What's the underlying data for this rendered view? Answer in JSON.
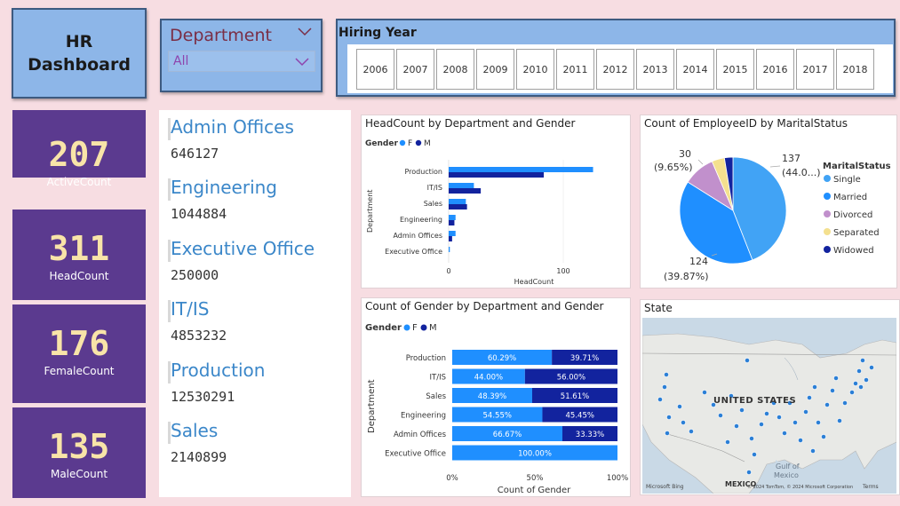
{
  "header": {
    "title_line1": "HR",
    "title_line2": "Dashboard"
  },
  "dept_slicer": {
    "label": "Department",
    "value": "All"
  },
  "year_slicer": {
    "title": "Hiring Year",
    "years": [
      "2006",
      "2007",
      "2008",
      "2009",
      "2010",
      "2011",
      "2012",
      "2013",
      "2014",
      "2015",
      "2016",
      "2017",
      "2018"
    ]
  },
  "kpis": [
    {
      "value": "207",
      "label": "ActiveCount"
    },
    {
      "value": "311",
      "label": "HeadCount"
    },
    {
      "value": "176",
      "label": "FemaleCount"
    },
    {
      "value": "135",
      "label": "MaleCount"
    }
  ],
  "dept_salaries": [
    {
      "name": "Admin Offices",
      "value": "646127"
    },
    {
      "name": "Engineering",
      "value": "1044884"
    },
    {
      "name": "Executive Office",
      "value": "250000"
    },
    {
      "name": "IT/IS",
      "value": "4853232"
    },
    {
      "name": "Production",
      "value": "12530291"
    },
    {
      "name": "Sales",
      "value": "2140899"
    }
  ],
  "colors": {
    "female": "#1f8fff",
    "male": "#12239e",
    "single": "#41a3f5",
    "married": "#1f8fff",
    "divorced": "#c190cc",
    "separated": "#f4e08f",
    "widowed": "#12239e"
  },
  "headcount_chart": {
    "title": "HeadCount by Department and Gender",
    "legend_title": "Gender",
    "legend_f": "F",
    "legend_m": "M",
    "ylabel": "Department",
    "xlabel": "HeadCount",
    "ticks": [
      "0",
      "100"
    ]
  },
  "gender_chart": {
    "title": "Count of Gender by Department and Gender",
    "legend_title": "Gender",
    "legend_f": "F",
    "legend_m": "M",
    "ylabel": "Department",
    "xlabel": "Count of Gender",
    "ticks": [
      "0%",
      "50%",
      "100%"
    ]
  },
  "marital_chart": {
    "title": "Count of EmployeeID by MaritalStatus",
    "legend_title": "MaritalStatus",
    "labels": [
      "Single",
      "Married",
      "Divorced",
      "Separated",
      "Widowed"
    ],
    "label_single_count": "137",
    "label_single_pct": "(44.0...)",
    "label_married_count": "124",
    "label_married_pct": "(39.87%)",
    "label_divorced_count": "30",
    "label_divorced_pct": "(9.65%)"
  },
  "map": {
    "title": "State",
    "country_label": "UNITED STATES",
    "gulf_label": "Gulf of\nMexico",
    "mexico_label": "MEXICO",
    "copyright": "© 2024 TomTom, © 2024 Microsoft Corporation",
    "terms": "Terms",
    "bing": "Microsoft Bing"
  },
  "chart_data": [
    {
      "type": "bar",
      "title": "HeadCount by Department and Gender",
      "xlabel": "HeadCount",
      "ylabel": "Department",
      "categories": [
        "Production",
        "IT/IS",
        "Sales",
        "Engineering",
        "Admin Offices",
        "Executive Office"
      ],
      "series": [
        {
          "name": "F",
          "values": [
            126,
            22,
            15,
            6,
            6,
            1
          ]
        },
        {
          "name": "M",
          "values": [
            83,
            28,
            16,
            5,
            3,
            0
          ]
        }
      ],
      "xlim": [
        0,
        140
      ]
    },
    {
      "type": "bar",
      "title": "Count of Gender by Department and Gender",
      "xlabel": "Count of Gender",
      "ylabel": "Department",
      "categories": [
        "Production",
        "IT/IS",
        "Sales",
        "Engineering",
        "Admin Offices",
        "Executive Office"
      ],
      "series": [
        {
          "name": "F",
          "values": [
            60.29,
            44.0,
            48.39,
            54.55,
            66.67,
            100.0
          ],
          "labels": [
            "60.29%",
            "44.00%",
            "48.39%",
            "54.55%",
            "66.67%",
            "100.00%"
          ]
        },
        {
          "name": "M",
          "values": [
            39.71,
            56.0,
            51.61,
            45.45,
            33.33,
            0
          ],
          "labels": [
            "39.71%",
            "56.00%",
            "51.61%",
            "45.45%",
            "33.33%",
            ""
          ]
        }
      ],
      "xlim": [
        0,
        100
      ]
    },
    {
      "type": "pie",
      "title": "Count of EmployeeID by MaritalStatus",
      "categories": [
        "Single",
        "Married",
        "Divorced",
        "Separated",
        "Widowed"
      ],
      "values": [
        137,
        124,
        30,
        12,
        8
      ]
    }
  ]
}
